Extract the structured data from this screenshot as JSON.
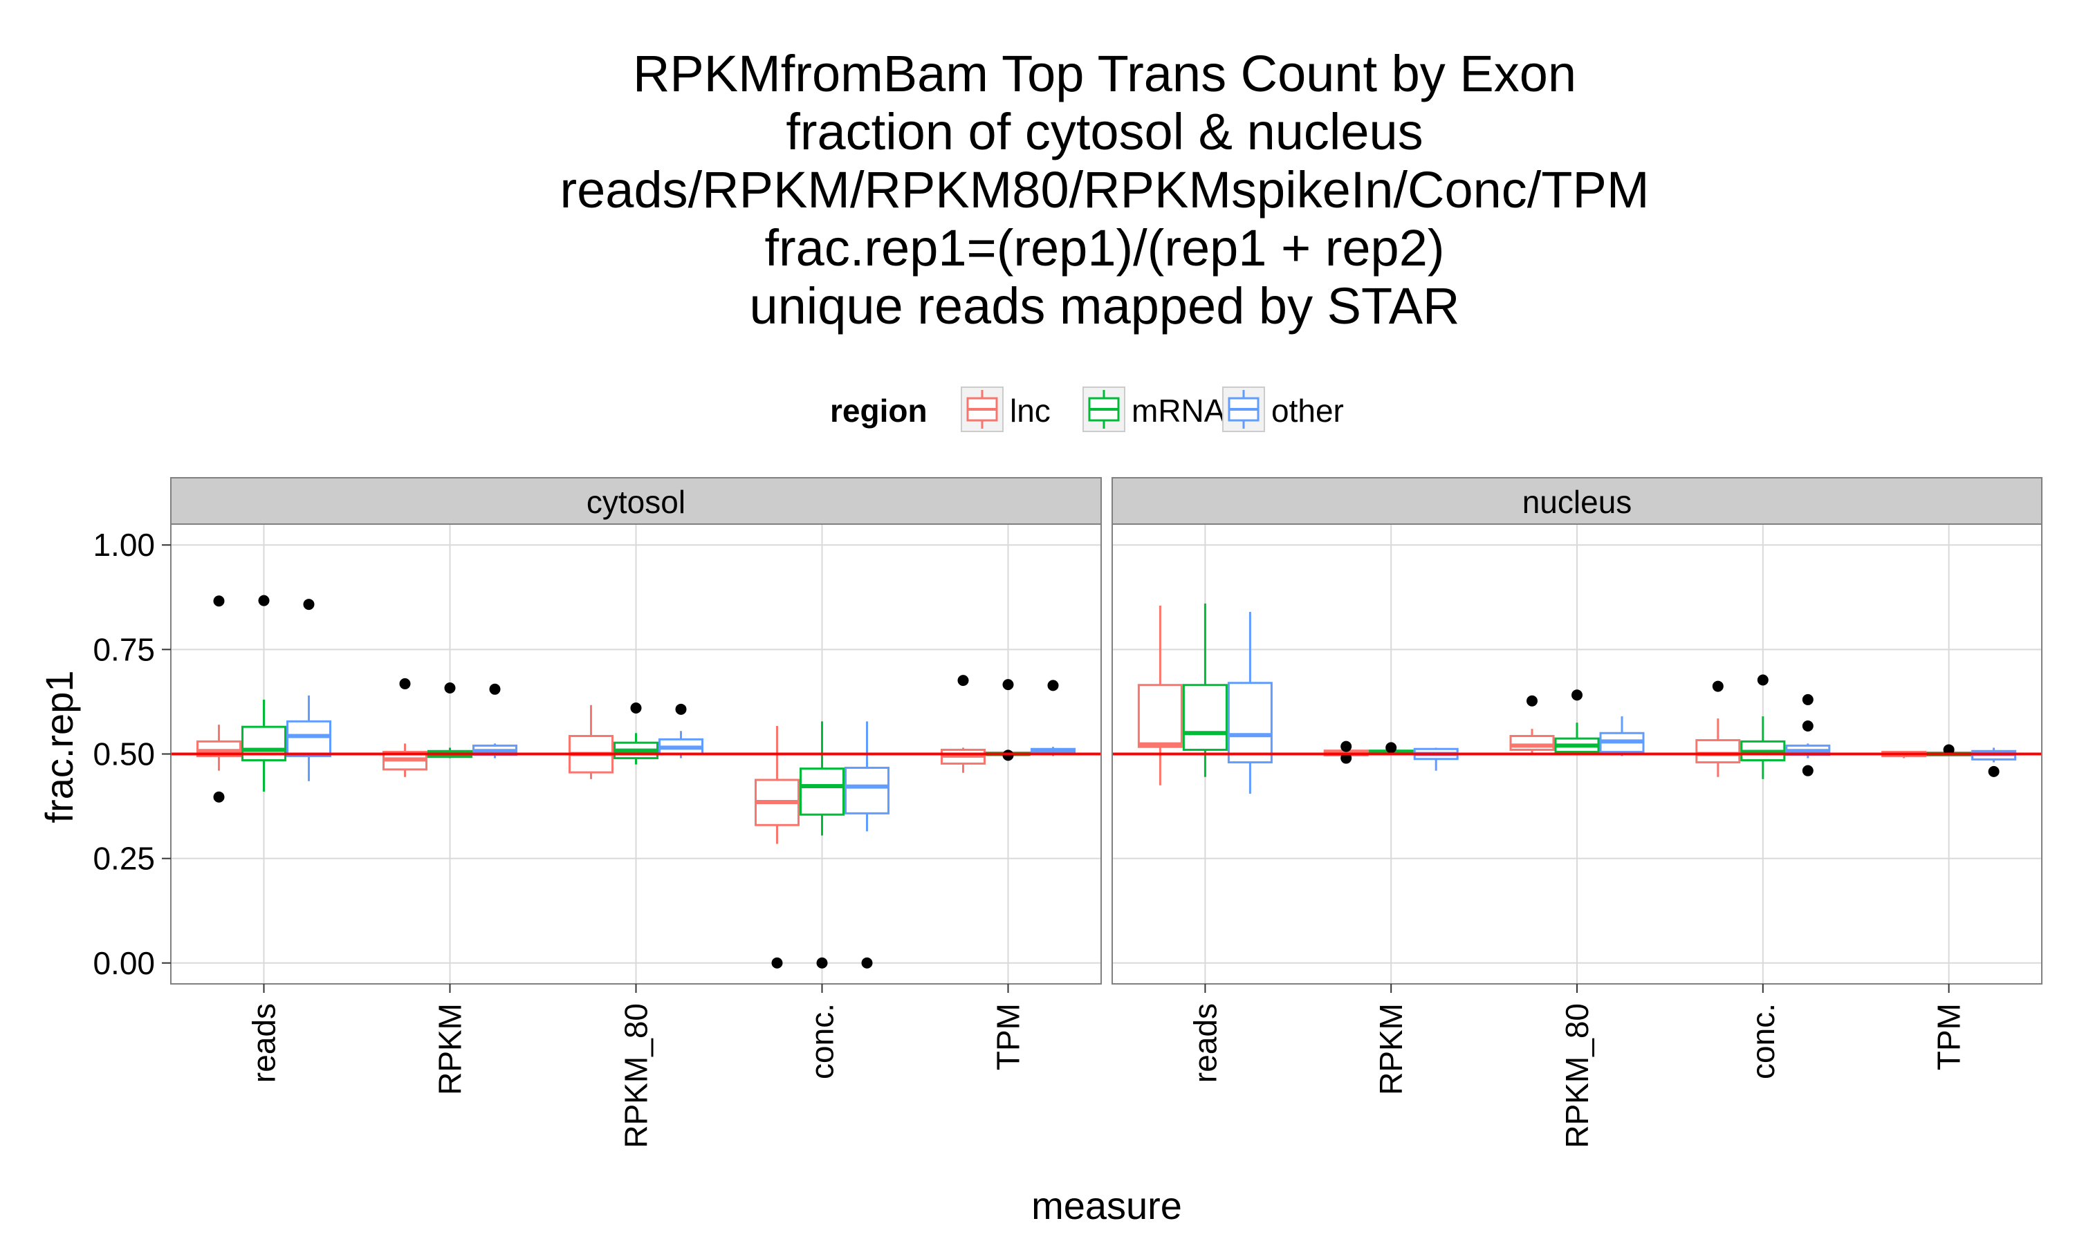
{
  "chart_data": {
    "type": "boxplot",
    "title_lines": [
      "RPKMfromBam Top Trans Count by Exon",
      "fraction of cytosol & nucleus",
      "reads/RPKM/RPKM80/RPKMspikeIn/Conc/TPM",
      "frac.rep1=(rep1)/(rep1 + rep2)",
      "unique reads mapped by STAR"
    ],
    "xlabel": "measure",
    "ylabel": "frac.rep1",
    "ylim": [
      -0.05,
      1.05
    ],
    "y_ticks": [
      "0.00",
      "0.25",
      "0.50",
      "0.75",
      "1.00"
    ],
    "y_tick_values": [
      0,
      0.25,
      0.5,
      0.75,
      1.0
    ],
    "categories": [
      "reads",
      "RPKM",
      "RPKM_80",
      "conc.",
      "TPM"
    ],
    "legend": {
      "title": "region",
      "position": "top",
      "items": [
        {
          "label": "lnc",
          "color": "#F8766D"
        },
        {
          "label": "mRNA",
          "color": "#00BA38"
        },
        {
          "label": "other",
          "color": "#619CFF"
        }
      ]
    },
    "reference_line": {
      "y": 0.5,
      "color": "#FF0000"
    },
    "grid": true,
    "panels": [
      {
        "strip": "cytosol",
        "boxes": [
          [
            {
              "region": "lnc",
              "min": 0.46,
              "q1": 0.495,
              "median": 0.507,
              "q3": 0.53,
              "max": 0.57,
              "outliers": [
                0.866,
                0.397
              ]
            },
            {
              "region": "mRNA",
              "min": 0.41,
              "q1": 0.485,
              "median": 0.51,
              "q3": 0.565,
              "max": 0.63,
              "outliers": [
                0.867
              ]
            },
            {
              "region": "other",
              "min": 0.435,
              "q1": 0.495,
              "median": 0.543,
              "q3": 0.578,
              "max": 0.64,
              "outliers": [
                0.858
              ]
            }
          ],
          [
            {
              "region": "lnc",
              "min": 0.445,
              "q1": 0.463,
              "median": 0.487,
              "q3": 0.505,
              "max": 0.525,
              "outliers": [
                0.668
              ]
            },
            {
              "region": "mRNA",
              "min": 0.49,
              "q1": 0.493,
              "median": 0.5,
              "q3": 0.507,
              "max": 0.515,
              "outliers": [
                0.658
              ]
            },
            {
              "region": "other",
              "min": 0.49,
              "q1": 0.498,
              "median": 0.507,
              "q3": 0.52,
              "max": 0.525,
              "outliers": [
                0.655
              ]
            }
          ],
          [
            {
              "region": "lnc",
              "min": 0.44,
              "q1": 0.456,
              "median": 0.5,
              "q3": 0.543,
              "max": 0.617,
              "outliers": []
            },
            {
              "region": "mRNA",
              "min": 0.475,
              "q1": 0.49,
              "median": 0.508,
              "q3": 0.527,
              "max": 0.55,
              "outliers": [
                0.61
              ]
            },
            {
              "region": "other",
              "min": 0.49,
              "q1": 0.5,
              "median": 0.515,
              "q3": 0.535,
              "max": 0.555,
              "outliers": [
                0.607
              ]
            }
          ],
          [
            {
              "region": "lnc",
              "min": 0.285,
              "q1": 0.33,
              "median": 0.385,
              "q3": 0.438,
              "max": 0.567,
              "outliers": [
                0.0
              ]
            },
            {
              "region": "mRNA",
              "min": 0.305,
              "q1": 0.355,
              "median": 0.423,
              "q3": 0.465,
              "max": 0.578,
              "outliers": [
                0.0
              ]
            },
            {
              "region": "other",
              "min": 0.315,
              "q1": 0.358,
              "median": 0.422,
              "q3": 0.467,
              "max": 0.578,
              "outliers": [
                0.0
              ]
            }
          ],
          [
            {
              "region": "lnc",
              "min": 0.455,
              "q1": 0.477,
              "median": 0.496,
              "q3": 0.51,
              "max": 0.515,
              "outliers": [
                0.676
              ]
            },
            {
              "region": "mRNA",
              "min": 0.495,
              "q1": 0.498,
              "median": 0.5,
              "q3": 0.503,
              "max": 0.505,
              "outliers": [
                0.666,
                0.497
              ]
            },
            {
              "region": "other",
              "min": 0.495,
              "q1": 0.5,
              "median": 0.505,
              "q3": 0.512,
              "max": 0.517,
              "outliers": [
                0.664
              ]
            }
          ]
        ]
      },
      {
        "strip": "nucleus",
        "boxes": [
          [
            {
              "region": "lnc",
              "min": 0.425,
              "q1": 0.517,
              "median": 0.523,
              "q3": 0.665,
              "max": 0.855,
              "outliers": []
            },
            {
              "region": "mRNA",
              "min": 0.445,
              "q1": 0.51,
              "median": 0.55,
              "q3": 0.665,
              "max": 0.86,
              "outliers": []
            },
            {
              "region": "other",
              "min": 0.405,
              "q1": 0.48,
              "median": 0.545,
              "q3": 0.67,
              "max": 0.84,
              "outliers": []
            }
          ],
          [
            {
              "region": "lnc",
              "min": 0.495,
              "q1": 0.497,
              "median": 0.502,
              "q3": 0.508,
              "max": 0.51,
              "outliers": [
                0.518,
                0.49
              ]
            },
            {
              "region": "mRNA",
              "min": 0.5,
              "q1": 0.502,
              "median": 0.505,
              "q3": 0.508,
              "max": 0.51,
              "outliers": [
                0.515
              ]
            },
            {
              "region": "other",
              "min": 0.46,
              "q1": 0.488,
              "median": 0.5,
              "q3": 0.512,
              "max": 0.515,
              "outliers": []
            }
          ],
          [
            {
              "region": "lnc",
              "min": 0.5,
              "q1": 0.51,
              "median": 0.52,
              "q3": 0.543,
              "max": 0.56,
              "outliers": [
                0.627
              ]
            },
            {
              "region": "mRNA",
              "min": 0.5,
              "q1": 0.505,
              "median": 0.52,
              "q3": 0.537,
              "max": 0.575,
              "outliers": [
                0.641
              ]
            },
            {
              "region": "other",
              "min": 0.495,
              "q1": 0.505,
              "median": 0.53,
              "q3": 0.55,
              "max": 0.59,
              "outliers": []
            }
          ],
          [
            {
              "region": "lnc",
              "min": 0.445,
              "q1": 0.48,
              "median": 0.5,
              "q3": 0.533,
              "max": 0.585,
              "outliers": [
                0.662
              ]
            },
            {
              "region": "mRNA",
              "min": 0.44,
              "q1": 0.485,
              "median": 0.505,
              "q3": 0.53,
              "max": 0.59,
              "outliers": [
                0.677
              ]
            },
            {
              "region": "other",
              "min": 0.49,
              "q1": 0.498,
              "median": 0.507,
              "q3": 0.52,
              "max": 0.525,
              "outliers": [
                0.63,
                0.567,
                0.46
              ]
            }
          ],
          [
            {
              "region": "lnc",
              "min": 0.49,
              "q1": 0.495,
              "median": 0.5,
              "q3": 0.505,
              "max": 0.505,
              "outliers": []
            },
            {
              "region": "mRNA",
              "min": 0.495,
              "q1": 0.497,
              "median": 0.5,
              "q3": 0.503,
              "max": 0.505,
              "outliers": [
                0.51
              ]
            },
            {
              "region": "other",
              "min": 0.48,
              "q1": 0.487,
              "median": 0.5,
              "q3": 0.507,
              "max": 0.515,
              "outliers": [
                0.458
              ]
            }
          ]
        ]
      }
    ]
  }
}
